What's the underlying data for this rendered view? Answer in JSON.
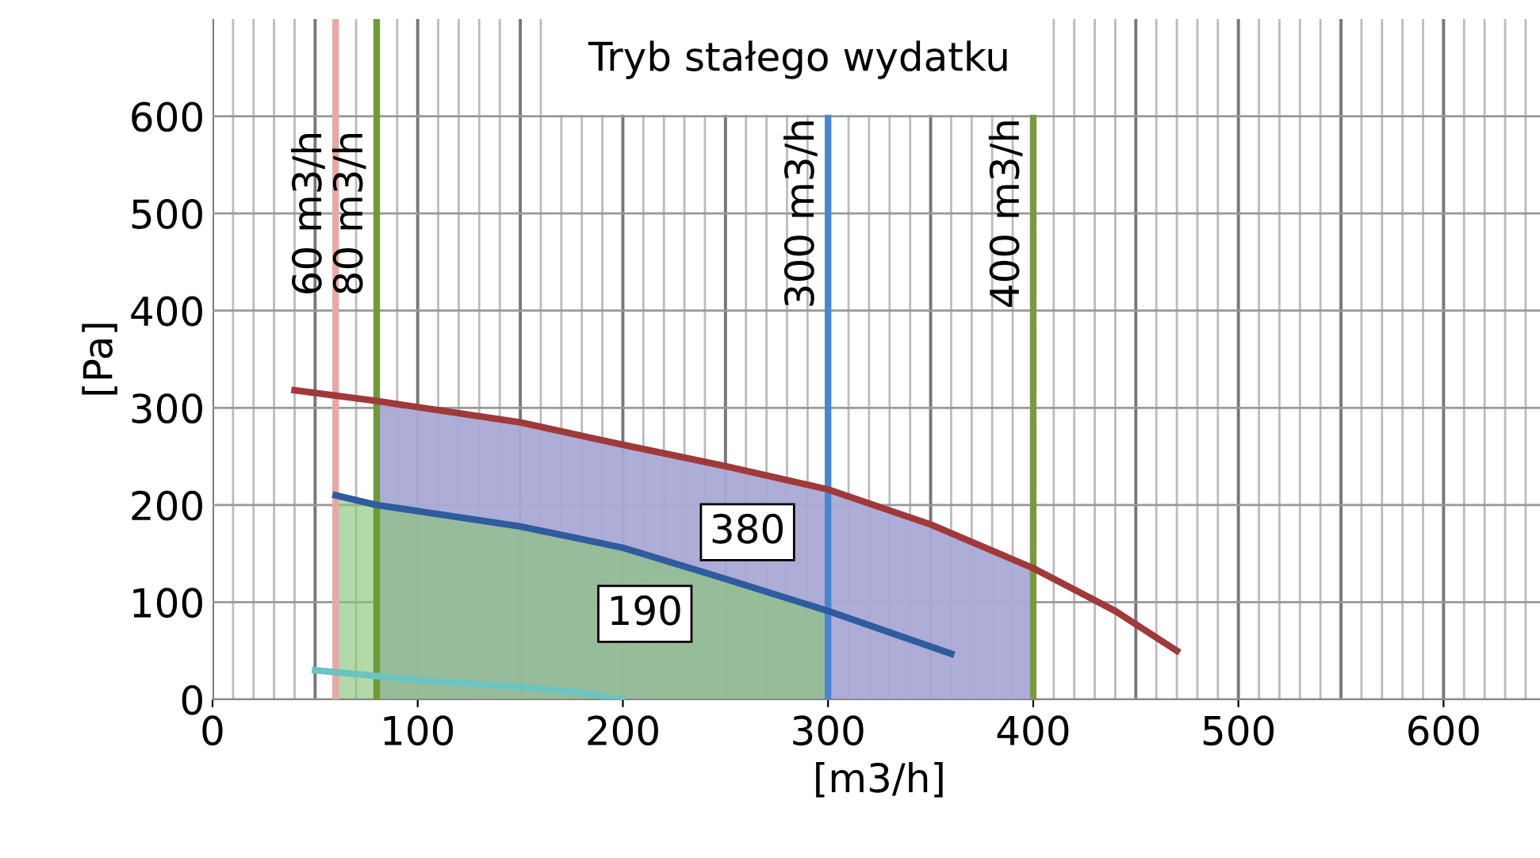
{
  "chart_data": {
    "type": "line",
    "title": "Tryb stałego wydatku",
    "xlabel": "[m3/h]",
    "ylabel": "[Pa]",
    "xlim": [
      0,
      650
    ],
    "ylim": [
      0,
      700
    ],
    "xticks": [
      0,
      100,
      200,
      300,
      400,
      500,
      600
    ],
    "yticks": [
      0,
      100,
      200,
      300,
      400,
      500,
      600
    ],
    "grid": true,
    "series": [
      {
        "type": "area",
        "color": "#a9a9d6",
        "x": [
          80,
          150,
          200,
          250,
          300,
          350,
          400
        ],
        "values": [
          307,
          285,
          262,
          240,
          216,
          180,
          135
        ]
      },
      {
        "type": "area",
        "color": "#8cc47a",
        "x": [
          60,
          80,
          150,
          200,
          250,
          300
        ],
        "values": [
          210,
          200,
          178,
          156,
          124,
          91
        ]
      },
      {
        "color": "#a0393a",
        "x": [
          40,
          80,
          150,
          200,
          250,
          300,
          350,
          400,
          440,
          470
        ],
        "values": [
          318,
          307,
          285,
          262,
          240,
          216,
          180,
          135,
          91,
          50
        ]
      },
      {
        "color": "#2e5c9e",
        "x": [
          60,
          80,
          150,
          200,
          250,
          300,
          360
        ],
        "values": [
          210,
          200,
          178,
          156,
          124,
          91,
          47
        ]
      },
      {
        "color": "#6cc4c0",
        "x": [
          50,
          100,
          150,
          180,
          200
        ],
        "values": [
          30,
          20,
          13,
          7,
          0
        ]
      }
    ],
    "ref_lines": [
      {
        "axis": "x",
        "value": 60,
        "label": "60 m3/h",
        "color": "#e6a8a8"
      },
      {
        "axis": "x",
        "value": 80,
        "label": "80 m3/h",
        "color": "#6e9a3a"
      },
      {
        "axis": "x",
        "value": 300,
        "label": "300 m3/h",
        "color": "#4a86cf"
      },
      {
        "axis": "x",
        "value": 400,
        "label": "400 m3/h",
        "color": "#7a9a40"
      }
    ],
    "annotations": [
      {
        "text": "380",
        "x": 250,
        "y": 240
      },
      {
        "text": "190",
        "x": 200,
        "y": 156
      }
    ]
  }
}
